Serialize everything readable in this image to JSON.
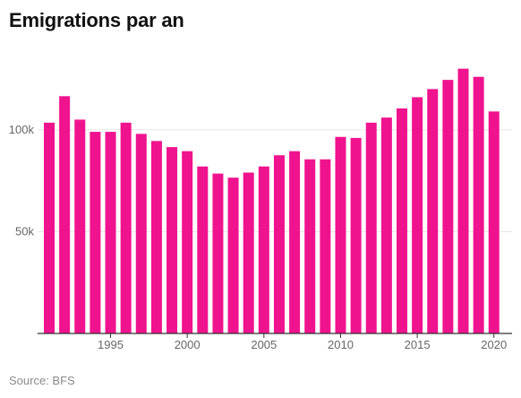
{
  "title": "Emigrations par an",
  "source": "Source: BFS",
  "colors": {
    "bar": "#f0138e",
    "grid": "#e6e6e6",
    "axis": "#333333"
  },
  "chart_data": {
    "type": "bar",
    "title": "Emigrations par an",
    "xlabel": "",
    "ylabel": "",
    "categories": [
      1991,
      1992,
      1993,
      1994,
      1995,
      1996,
      1997,
      1998,
      1999,
      2000,
      2001,
      2002,
      2003,
      2004,
      2005,
      2006,
      2007,
      2008,
      2009,
      2010,
      2011,
      2012,
      2013,
      2014,
      2015,
      2016,
      2017,
      2018,
      2019,
      2020
    ],
    "values": [
      103500,
      116500,
      105000,
      99000,
      99000,
      103500,
      98000,
      94500,
      91500,
      89500,
      82000,
      78500,
      76500,
      79000,
      82000,
      87500,
      89500,
      85500,
      85500,
      96500,
      96000,
      103500,
      106000,
      110500,
      116000,
      120000,
      124500,
      130000,
      126000,
      109000
    ],
    "ylim": [
      0,
      136000
    ],
    "yticks": [
      {
        "value": 50000,
        "label": "50k"
      },
      {
        "value": 100000,
        "label": "100k"
      }
    ],
    "xticks": [
      {
        "value": 1995,
        "label": "1995"
      },
      {
        "value": 2000,
        "label": "2000"
      },
      {
        "value": 2005,
        "label": "2005"
      },
      {
        "value": 2010,
        "label": "2010"
      },
      {
        "value": 2015,
        "label": "2015"
      },
      {
        "value": 2020,
        "label": "2020"
      }
    ],
    "grid": true,
    "legend": "none"
  }
}
